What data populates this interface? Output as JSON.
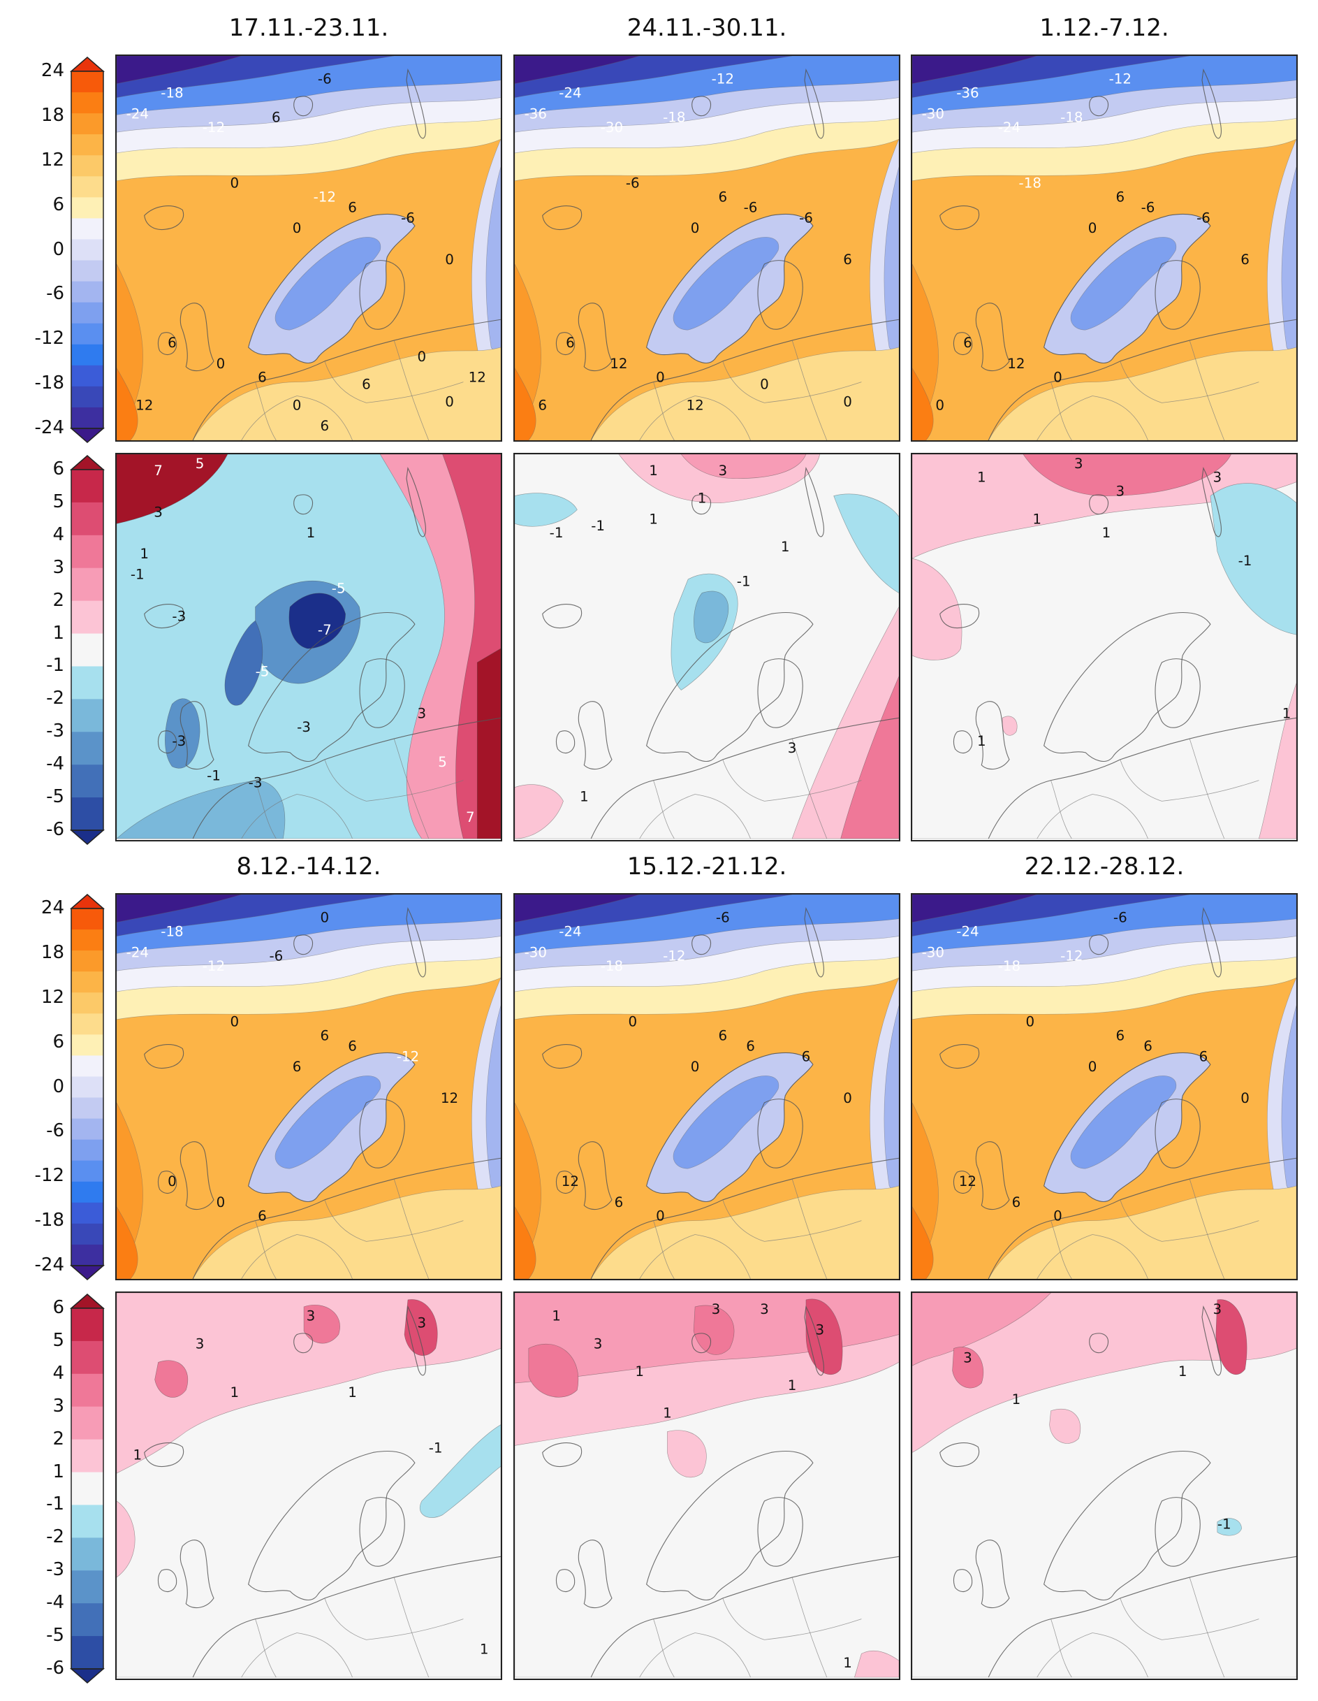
{
  "titles": [
    "17.11.-23.11.",
    "24.11.-30.11.",
    "1.12.-7.12.",
    "8.12.-14.12.",
    "15.12.-21.12.",
    "22.12.-28.12."
  ],
  "temperature_colorbar": {
    "ticks": [
      "24",
      "18",
      "12",
      "6",
      "0",
      "-6",
      "-12",
      "-18",
      "-24"
    ],
    "colors": [
      "#e8340c",
      "#f75a0a",
      "#fb7e13",
      "#fb9a2a",
      "#fcb447",
      "#fcc968",
      "#fddc8c",
      "#fef0b5",
      "#f2f2fb",
      "#dde0f7",
      "#c3cbf2",
      "#a3b5f0",
      "#7ea0ef",
      "#5a8ff0",
      "#2f7bef",
      "#3b5cd8",
      "#3948b8",
      "#3d2fa0",
      "#3b1a8a"
    ]
  },
  "anomaly_colorbar": {
    "ticks": [
      "6",
      "5",
      "4",
      "3",
      "2",
      "1",
      "-1",
      "-2",
      "-3",
      "-4",
      "-5",
      "-6"
    ],
    "colors": [
      "#a31428",
      "#c7284a",
      "#dd4d72",
      "#ef7898",
      "#f79cb6",
      "#fcc4d5",
      "#f6f6f6",
      "#a7e0ee",
      "#7ab8da",
      "#5b93c9",
      "#4270b8",
      "#2d4ea5",
      "#1b2f8a"
    ]
  },
  "temp_panels": [
    {
      "labels": [
        "-24",
        "-18",
        "-12",
        "6",
        "-6",
        "0",
        "0",
        "6",
        "-12",
        "-6",
        "0",
        "6",
        "0",
        "6",
        "12",
        "0",
        "6",
        "0",
        "12",
        "0",
        "6"
      ]
    },
    {
      "labels": [
        "-36",
        "-24",
        "-30",
        "-18",
        "-12",
        "-6",
        "0",
        "-6",
        "6",
        "-6",
        "6",
        "6",
        "12",
        "0",
        "6",
        "12",
        "0",
        "0"
      ]
    },
    {
      "labels": [
        "-30",
        "-36",
        "-24",
        "-18",
        "-12",
        "-18",
        "0",
        "-6",
        "6",
        "-6",
        "6",
        "6",
        "12",
        "0",
        "0"
      ]
    },
    {
      "labels": [
        "-24",
        "-18",
        "-12",
        "-6",
        "0",
        "0",
        "6",
        "6",
        "6",
        "-12",
        "12",
        "0",
        "0",
        "6"
      ]
    },
    {
      "labels": [
        "-30",
        "-24",
        "-18",
        "-12",
        "-6",
        "0",
        "0",
        "6",
        "6",
        "6",
        "0",
        "12",
        "6",
        "0"
      ]
    },
    {
      "labels": [
        "-30",
        "-24",
        "-18",
        "-12",
        "-6",
        "0",
        "0",
        "6",
        "6",
        "6",
        "0",
        "12",
        "6",
        "0"
      ]
    }
  ],
  "anom_panels": [
    {
      "labels": [
        "7",
        "5",
        "3",
        "1",
        "-3",
        "-1",
        "-5",
        "-7",
        "-5",
        "-3",
        "-3",
        "-3",
        "-1",
        "3",
        "5",
        "7",
        "1"
      ]
    },
    {
      "labels": [
        "1",
        "3",
        "1",
        "-1",
        "-1",
        "1",
        "-1",
        "1",
        "3",
        "1"
      ]
    },
    {
      "labels": [
        "1",
        "3",
        "3",
        "3",
        "1",
        "1",
        "-1",
        "1",
        "1"
      ]
    },
    {
      "labels": [
        "3",
        "1",
        "3",
        "3",
        "1",
        "1",
        "-1",
        "1"
      ]
    },
    {
      "labels": [
        "1",
        "3",
        "3",
        "1",
        "3",
        "3",
        "1",
        "1",
        "1"
      ]
    },
    {
      "labels": [
        "3",
        "1",
        "3",
        "1",
        "-1"
      ]
    }
  ]
}
